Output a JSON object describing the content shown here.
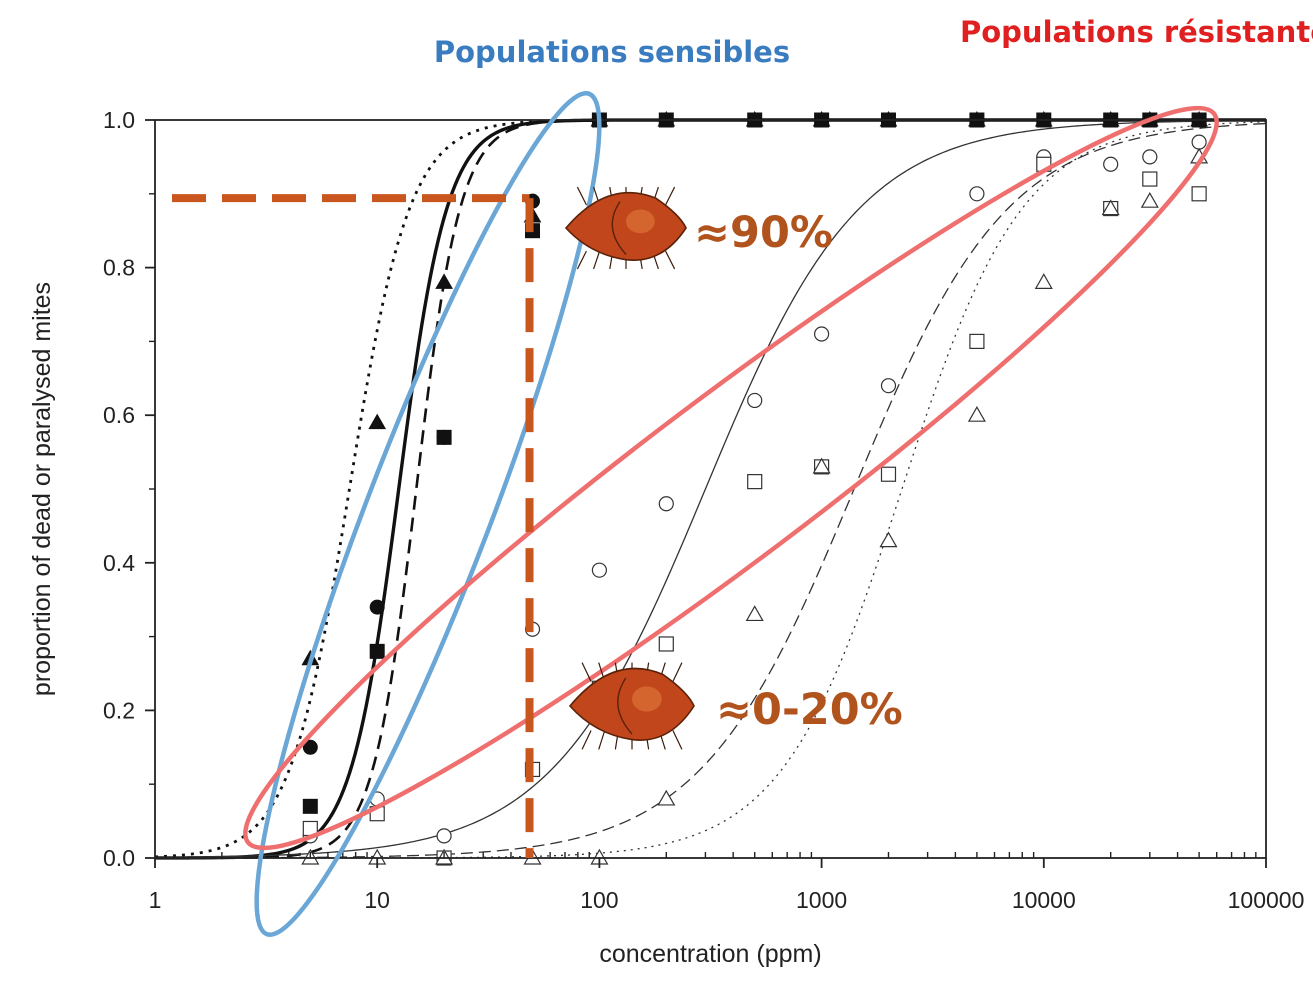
{
  "chart_data": {
    "type": "scatter",
    "xscale": "log",
    "xlim": [
      1,
      100000
    ],
    "ylim": [
      0,
      1
    ],
    "xticks": [
      1,
      10,
      100,
      1000,
      10000,
      100000
    ],
    "xtick_labels": [
      "1",
      "10",
      "100",
      "1000",
      "10000",
      "100000"
    ],
    "yticks": [
      0,
      0.2,
      0.4,
      0.6,
      0.8,
      1.0
    ],
    "ytick_labels": [
      "0.0",
      "0.2",
      "0.4",
      "0.6",
      "0.8",
      "1.0"
    ],
    "xlabel": "concentration (ppm)",
    "ylabel": "proportion of dead or paralysed mites",
    "grid": false,
    "series": [
      {
        "marker": "triangle-filled",
        "line": "dotted-thick",
        "color": "#111111",
        "ec50": 7.5,
        "slope": 3.2,
        "points": [
          [
            5,
            0.27
          ],
          [
            10,
            0.59
          ],
          [
            20,
            0.78
          ],
          [
            50,
            0.87
          ],
          [
            100,
            1.0
          ],
          [
            200,
            1.0
          ],
          [
            500,
            1.0
          ],
          [
            1000,
            1.0
          ],
          [
            2000,
            1.0
          ],
          [
            5000,
            1.0
          ],
          [
            10000,
            1.0
          ],
          [
            20000,
            1.0
          ],
          [
            30000,
            1.0
          ],
          [
            50000,
            1.0
          ]
        ]
      },
      {
        "marker": "circle-filled",
        "line": "solid-thick",
        "color": "#111111",
        "ec50": 12.5,
        "slope": 4.0,
        "points": [
          [
            5,
            0.15
          ],
          [
            10,
            0.34
          ],
          [
            20,
            0.57
          ],
          [
            50,
            0.89
          ],
          [
            100,
            1.0
          ],
          [
            200,
            1.0
          ],
          [
            500,
            1.0
          ],
          [
            1000,
            1.0
          ],
          [
            2000,
            1.0
          ],
          [
            5000,
            1.0
          ],
          [
            10000,
            1.0
          ],
          [
            20000,
            1.0
          ],
          [
            30000,
            1.0
          ],
          [
            50000,
            1.0
          ]
        ]
      },
      {
        "marker": "square-filled",
        "line": "dashed-thick",
        "color": "#111111",
        "ec50": 15,
        "slope": 4.4,
        "points": [
          [
            5,
            0.07
          ],
          [
            10,
            0.28
          ],
          [
            20,
            0.57
          ],
          [
            50,
            0.85
          ],
          [
            100,
            1.0
          ],
          [
            200,
            1.0
          ],
          [
            500,
            1.0
          ],
          [
            1000,
            1.0
          ],
          [
            2000,
            1.0
          ],
          [
            5000,
            1.0
          ],
          [
            10000,
            1.0
          ],
          [
            20000,
            1.0
          ],
          [
            30000,
            1.0
          ],
          [
            50000,
            1.0
          ]
        ]
      },
      {
        "marker": "circle-open",
        "line": "solid-thin",
        "color": "#333333",
        "ec50": 300,
        "slope": 1.25,
        "points": [
          [
            5,
            0.03
          ],
          [
            10,
            0.08
          ],
          [
            20,
            0.03
          ],
          [
            50,
            0.31
          ],
          [
            100,
            0.39
          ],
          [
            200,
            0.48
          ],
          [
            500,
            0.62
          ],
          [
            1000,
            0.71
          ],
          [
            2000,
            0.64
          ],
          [
            5000,
            0.9
          ],
          [
            10000,
            0.95
          ],
          [
            20000,
            0.94
          ],
          [
            30000,
            0.95
          ],
          [
            50000,
            0.97
          ]
        ]
      },
      {
        "marker": "square-open",
        "line": "dashed-thin",
        "color": "#333333",
        "ec50": 1400,
        "slope": 1.25,
        "points": [
          [
            5,
            0.04
          ],
          [
            10,
            0.06
          ],
          [
            20,
            0.0
          ],
          [
            50,
            0.12
          ],
          [
            100,
            0.23
          ],
          [
            200,
            0.29
          ],
          [
            500,
            0.51
          ],
          [
            1000,
            0.53
          ],
          [
            2000,
            0.52
          ],
          [
            5000,
            0.7
          ],
          [
            10000,
            0.94
          ],
          [
            20000,
            0.88
          ],
          [
            30000,
            0.92
          ],
          [
            50000,
            0.9
          ]
        ]
      },
      {
        "marker": "triangle-open",
        "line": "dotted-thin",
        "color": "#333333",
        "ec50": 2300,
        "slope": 1.6,
        "points": [
          [
            5,
            0.0
          ],
          [
            10,
            0.0
          ],
          [
            20,
            0.0
          ],
          [
            50,
            0.0
          ],
          [
            100,
            0.0
          ],
          [
            200,
            0.08
          ],
          [
            500,
            0.33
          ],
          [
            1000,
            0.53
          ],
          [
            2000,
            0.43
          ],
          [
            5000,
            0.6
          ],
          [
            10000,
            0.78
          ],
          [
            20000,
            0.88
          ],
          [
            30000,
            0.89
          ],
          [
            50000,
            0.95
          ]
        ]
      }
    ],
    "annotations": {
      "sensitive_label": "Populations sensibles",
      "sensitive_color": "#3a7cc0",
      "sensitive_ellipse_color": "#6aa6d6",
      "resistant_label": "Populations résistantes",
      "resistant_color": "#e02020",
      "resistant_ellipse_color": "#ef6f6f",
      "reference_line": {
        "x": 50,
        "y": 0.89,
        "color": "#c8561e"
      },
      "label_high": "≈90%",
      "label_low": "≈0-20%",
      "label_color": "#b0531c",
      "mite_icon_color": "#c2461c"
    }
  }
}
